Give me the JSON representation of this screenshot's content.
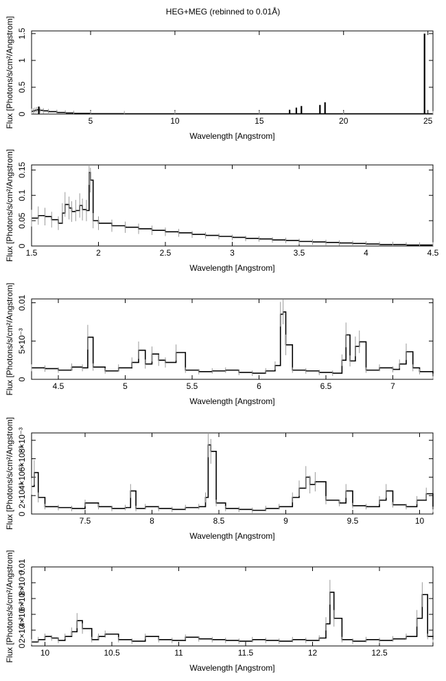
{
  "title": "HEG+MEG (rebinned to 0.01Å)",
  "chart_data": [
    {
      "type": "line",
      "xlabel": "Wavelength [Angstrom]",
      "ylabel": "Flux [Photons/s/cm²/Angstrom]",
      "xlim": [
        1.5,
        25.3
      ],
      "ylim": [
        0,
        1.55
      ],
      "xticks": [
        5,
        10,
        15,
        20,
        25
      ],
      "yticks": [
        0,
        0.5,
        1,
        1.5
      ],
      "ytick_labels": [
        "0",
        "0.5",
        "1",
        "1.5"
      ],
      "series": [
        {
          "x": [
            1.5,
            1.6,
            1.7,
            1.8,
            1.9,
            2.0,
            2.2,
            2.5,
            3.0,
            3.5,
            4.0,
            5.0,
            7.0,
            10.0,
            15.0,
            20.0,
            25.3
          ],
          "y": [
            0.05,
            0.06,
            0.07,
            0.08,
            0.08,
            0.07,
            0.06,
            0.045,
            0.03,
            0.02,
            0.012,
            0.008,
            0.006,
            0.005,
            0.005,
            0.005,
            0.005
          ]
        }
      ],
      "spikes": [
        {
          "x": 1.93,
          "y": 0.14
        },
        {
          "x": 16.8,
          "y": 0.08
        },
        {
          "x": 17.2,
          "y": 0.12
        },
        {
          "x": 17.5,
          "y": 0.15
        },
        {
          "x": 18.6,
          "y": 0.17
        },
        {
          "x": 18.9,
          "y": 0.22
        },
        {
          "x": 24.8,
          "y": 1.5
        }
      ]
    },
    {
      "type": "line",
      "xlabel": "Wavelength [Angstrom]",
      "ylabel": "Flux [Photons/s/cm²/Angstrom]",
      "xlim": [
        1.5,
        4.5
      ],
      "ylim": [
        0,
        0.16
      ],
      "xticks": [
        1.5,
        2,
        2.5,
        3,
        3.5,
        4,
        4.5
      ],
      "yticks": [
        0,
        0.05,
        0.1,
        0.15
      ],
      "ytick_labels": [
        "0",
        "0.05",
        "0.1",
        "0.15"
      ],
      "series": [
        {
          "x": [
            1.5,
            1.55,
            1.6,
            1.65,
            1.7,
            1.73,
            1.75,
            1.78,
            1.8,
            1.83,
            1.86,
            1.88,
            1.91,
            1.93,
            1.94,
            1.96,
            2.0,
            2.1,
            2.2,
            2.3,
            2.4,
            2.5,
            2.6,
            2.7,
            2.8,
            2.9,
            3.0,
            3.1,
            3.2,
            3.3,
            3.4,
            3.5,
            3.6,
            3.7,
            3.8,
            3.9,
            4.0,
            4.1,
            4.2,
            4.3,
            4.4,
            4.5
          ],
          "y": [
            0.055,
            0.06,
            0.058,
            0.052,
            0.045,
            0.065,
            0.082,
            0.075,
            0.068,
            0.07,
            0.08,
            0.072,
            0.07,
            0.145,
            0.13,
            0.05,
            0.045,
            0.04,
            0.037,
            0.034,
            0.031,
            0.028,
            0.026,
            0.023,
            0.021,
            0.019,
            0.017,
            0.015,
            0.014,
            0.012,
            0.011,
            0.009,
            0.008,
            0.007,
            0.006,
            0.005,
            0.004,
            0.003,
            0.003,
            0.002,
            0.002,
            0.002
          ]
        }
      ]
    },
    {
      "type": "line",
      "xlabel": "Wavelength [Angstrom]",
      "ylabel": "Flux [Photons/s/cm²/Angstrom]",
      "xlim": [
        4.3,
        7.3
      ],
      "ylim": [
        0,
        0.0105
      ],
      "xticks": [
        4.5,
        5,
        5.5,
        6,
        6.5,
        7
      ],
      "yticks": [
        0,
        0.005,
        0.01
      ],
      "ytick_labels": [
        "0",
        "5×10⁻³",
        "0.01"
      ],
      "series": [
        {
          "x": [
            4.3,
            4.4,
            4.5,
            4.6,
            4.68,
            4.72,
            4.76,
            4.85,
            4.95,
            5.05,
            5.1,
            5.15,
            5.2,
            5.25,
            5.3,
            5.38,
            5.45,
            5.55,
            5.65,
            5.75,
            5.85,
            5.95,
            6.05,
            6.12,
            6.16,
            6.18,
            6.2,
            6.25,
            6.35,
            6.45,
            6.55,
            6.62,
            6.65,
            6.68,
            6.72,
            6.75,
            6.8,
            6.9,
            7.0,
            7.05,
            7.1,
            7.15,
            7.2,
            7.3
          ],
          "y": [
            0.0015,
            0.0014,
            0.0012,
            0.0016,
            0.0015,
            0.0055,
            0.0016,
            0.0011,
            0.0015,
            0.0022,
            0.0038,
            0.002,
            0.0033,
            0.0025,
            0.0022,
            0.0035,
            0.0012,
            0.001,
            0.0011,
            0.0012,
            0.0009,
            0.0008,
            0.0011,
            0.0018,
            0.0085,
            0.0088,
            0.0045,
            0.0012,
            0.0011,
            0.0009,
            0.0008,
            0.0025,
            0.0058,
            0.0024,
            0.0043,
            0.0049,
            0.0012,
            0.0015,
            0.0013,
            0.002,
            0.0036,
            0.0015,
            0.001,
            0.0004
          ]
        }
      ]
    },
    {
      "type": "line",
      "xlabel": "Wavelength [Angstrom]",
      "ylabel": "Flux [Photons/s/cm²/Angstrom]",
      "xlim": [
        7.1,
        10.1
      ],
      "ylim": [
        0,
        0.0088
      ],
      "xticks": [
        7.5,
        8,
        8.5,
        9,
        9.5,
        10
      ],
      "yticks": [
        0,
        0.002,
        0.004,
        0.006,
        0.008
      ],
      "ytick_labels": [
        "0",
        "2×10⁻³",
        "4×10⁻³",
        "6×10⁻³",
        "8×10⁻³"
      ],
      "series": [
        {
          "x": [
            7.1,
            7.12,
            7.15,
            7.2,
            7.3,
            7.4,
            7.5,
            7.6,
            7.7,
            7.8,
            7.84,
            7.88,
            7.95,
            8.05,
            8.15,
            8.25,
            8.35,
            8.4,
            8.42,
            8.44,
            8.48,
            8.55,
            8.65,
            8.75,
            8.85,
            8.95,
            9.05,
            9.1,
            9.15,
            9.18,
            9.22,
            9.3,
            9.4,
            9.45,
            9.5,
            9.6,
            9.7,
            9.75,
            9.8,
            9.9,
            9.98,
            10.05,
            10.1
          ],
          "y": [
            0.003,
            0.0045,
            0.0018,
            0.0008,
            0.0007,
            0.0006,
            0.0012,
            0.0008,
            0.0006,
            0.0007,
            0.0025,
            0.0006,
            0.0008,
            0.0006,
            0.0005,
            0.0007,
            0.0008,
            0.0018,
            0.0075,
            0.0068,
            0.0012,
            0.0006,
            0.0005,
            0.0004,
            0.0006,
            0.0008,
            0.0018,
            0.0028,
            0.004,
            0.0032,
            0.0035,
            0.0015,
            0.0012,
            0.0025,
            0.0009,
            0.0008,
            0.0015,
            0.0025,
            0.001,
            0.0008,
            0.0015,
            0.0022,
            0.0005
          ]
        }
      ]
    },
    {
      "type": "line",
      "xlabel": "Wavelength [Angstrom]",
      "ylabel": "Flux [Photons/s/cm²/Angstrom]",
      "xlim": [
        9.9,
        12.9
      ],
      "ylim": [
        0,
        0.01
      ],
      "xticks": [
        10,
        10.5,
        11,
        11.5,
        12,
        12.5
      ],
      "yticks": [
        0,
        0.002,
        0.004,
        0.006,
        0.008,
        0.01
      ],
      "ytick_labels": [
        "0",
        "2×10⁻³",
        "4×10⁻³",
        "6×10⁻³",
        "8×10⁻³",
        "0.01"
      ],
      "series": [
        {
          "x": [
            9.9,
            9.95,
            10.0,
            10.05,
            10.1,
            10.15,
            10.2,
            10.24,
            10.28,
            10.35,
            10.4,
            10.45,
            10.55,
            10.65,
            10.75,
            10.85,
            10.95,
            11.05,
            11.15,
            11.25,
            11.35,
            11.45,
            11.55,
            11.65,
            11.75,
            11.85,
            11.95,
            12.05,
            12.1,
            12.13,
            12.16,
            12.22,
            12.3,
            12.4,
            12.5,
            12.6,
            12.7,
            12.78,
            12.82,
            12.86,
            12.9
          ],
          "y": [
            0.0005,
            0.0008,
            0.0012,
            0.001,
            0.0007,
            0.0012,
            0.0018,
            0.0032,
            0.0022,
            0.0008,
            0.0012,
            0.0015,
            0.0008,
            0.0006,
            0.0012,
            0.0008,
            0.0007,
            0.0011,
            0.0009,
            0.0008,
            0.0007,
            0.0006,
            0.0008,
            0.0007,
            0.0006,
            0.0008,
            0.0007,
            0.001,
            0.0028,
            0.0068,
            0.0035,
            0.0008,
            0.0006,
            0.0008,
            0.0007,
            0.0009,
            0.0012,
            0.0035,
            0.0065,
            0.0012,
            0.0008
          ]
        }
      ]
    }
  ]
}
